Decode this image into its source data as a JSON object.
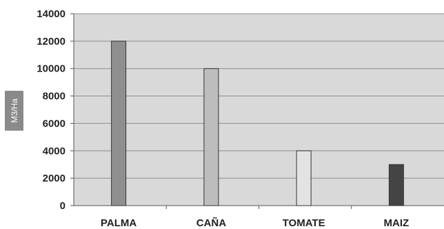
{
  "chart_data": {
    "type": "bar",
    "title": "",
    "xlabel": "",
    "ylabel": "M3/Ha",
    "ylim": [
      0,
      14000
    ],
    "yticks": [
      "0",
      "2000",
      "4000",
      "6000",
      "8000",
      "10000",
      "12000",
      "14000"
    ],
    "categories": [
      "PALMA",
      "CAÑA",
      "TOMATE",
      "MAIZ"
    ],
    "values": [
      12000,
      10000,
      4000,
      3000
    ],
    "colors": [
      "#8f8f8f",
      "#bdbdbd",
      "#e3e3e3",
      "#444444"
    ],
    "plot_background": "#d9d9d9",
    "grid": true,
    "legend": "none"
  }
}
